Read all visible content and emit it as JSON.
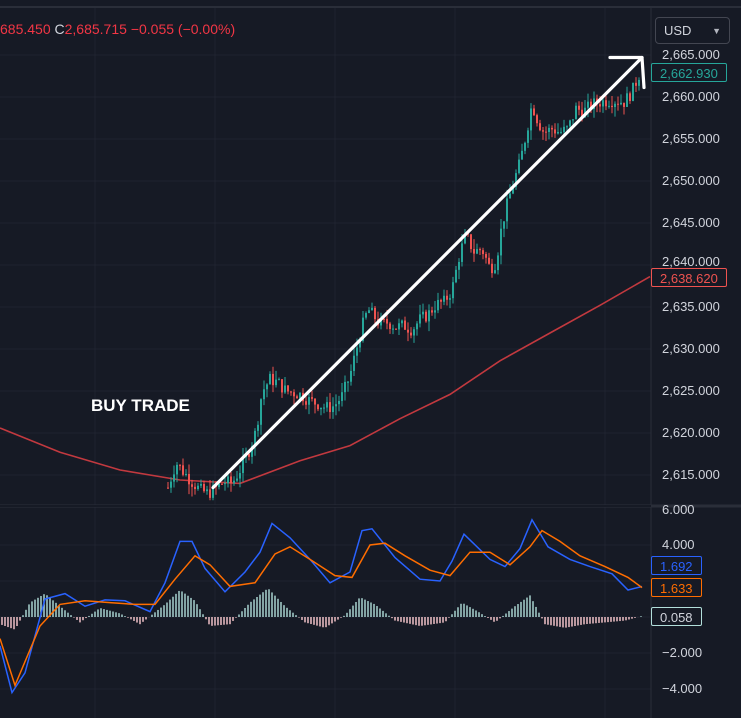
{
  "header": {
    "ohlc_open_fragment": "685.450",
    "close_label": "C",
    "close_value": "2,685.715",
    "change": "−0.055 (−0.00%)"
  },
  "currency_selector": {
    "label": "USD",
    "icon": "chevron-down-icon"
  },
  "colors": {
    "background": "#161a25",
    "up": "#26a69a",
    "down": "#ef5350",
    "moving_average": "#c2393f",
    "arrow": "#ffffff",
    "macd": "#2962ff",
    "signal": "#ff6d00",
    "hist_up": "#b2dfdb",
    "hist_down": "#ffcdd2"
  },
  "annotation": {
    "text": "BUY TRADE",
    "arrow": "trend-up-arrow"
  },
  "chart_data": [
    {
      "type": "candlestick",
      "title": "",
      "ylim": [
        2609,
        2666
      ],
      "y_ticks": [
        "2,615.000",
        "2,620.000",
        "2,625.000",
        "2,630.000",
        "2,635.000",
        "2,640.000",
        "2,645.000",
        "2,650.000",
        "2,655.000",
        "2,660.000",
        "2,665.000"
      ],
      "y_tick_values": [
        2615,
        2620,
        2625,
        2630,
        2635,
        2640,
        2645,
        2650,
        2655,
        2660,
        2665
      ],
      "price_badges": [
        {
          "label": "2,662.930",
          "value": 2662.93,
          "color": "#26a69a"
        },
        {
          "label": "2,638.620",
          "value": 2638.62,
          "color": "#ef5350"
        }
      ],
      "moving_average": {
        "points": [
          [
            0,
            2620.6
          ],
          [
            60,
            2617.7
          ],
          [
            120,
            2615.6
          ],
          [
            180,
            2614.4
          ],
          [
            240,
            2614
          ],
          [
            300,
            2616.7
          ],
          [
            350,
            2618.5
          ],
          [
            400,
            2621.7
          ],
          [
            450,
            2624.6
          ],
          [
            500,
            2628.6
          ],
          [
            550,
            2631.9
          ],
          [
            600,
            2635.2
          ],
          [
            650,
            2638.62
          ]
        ]
      },
      "trend_arrow": {
        "from": [
          213,
          2613.5
        ],
        "to": [
          642,
          2664.7
        ]
      },
      "price_path": [
        [
          168,
          2613.5
        ],
        [
          176,
          2616.5
        ],
        [
          184,
          2615.3
        ],
        [
          192,
          2614.2
        ],
        [
          200,
          2613.2
        ],
        [
          208,
          2612.8
        ],
        [
          216,
          2613.4
        ],
        [
          224,
          2614.2
        ],
        [
          232,
          2614
        ],
        [
          240,
          2615.6
        ],
        [
          248,
          2617.6
        ],
        [
          256,
          2620.2
        ],
        [
          262,
          2624.9
        ],
        [
          270,
          2626.4
        ],
        [
          278,
          2626
        ],
        [
          286,
          2625
        ],
        [
          294,
          2624.8
        ],
        [
          302,
          2624.5
        ],
        [
          310,
          2623.8
        ],
        [
          318,
          2623.5
        ],
        [
          326,
          2623
        ],
        [
          334,
          2623.2
        ],
        [
          342,
          2624.4
        ],
        [
          350,
          2626.8
        ],
        [
          356,
          2629.8
        ],
        [
          362,
          2632.6
        ],
        [
          368,
          2634.7
        ],
        [
          374,
          2633.9
        ],
        [
          380,
          2632.9
        ],
        [
          388,
          2633.2
        ],
        [
          396,
          2632.6
        ],
        [
          404,
          2632.8
        ],
        [
          412,
          2632.3
        ],
        [
          420,
          2633.5
        ],
        [
          428,
          2634.1
        ],
        [
          436,
          2635.3
        ],
        [
          444,
          2635.6
        ],
        [
          452,
          2637
        ],
        [
          460,
          2641.5
        ],
        [
          466,
          2643.5
        ],
        [
          474,
          2641.6
        ],
        [
          482,
          2641.9
        ],
        [
          490,
          2639.6
        ],
        [
          496,
          2640.3
        ],
        [
          502,
          2644.8
        ],
        [
          508,
          2647.6
        ],
        [
          514,
          2650
        ],
        [
          520,
          2652.2
        ],
        [
          526,
          2655.5
        ],
        [
          532,
          2659.2
        ],
        [
          538,
          2657.1
        ],
        [
          544,
          2655.8
        ],
        [
          552,
          2656.2
        ],
        [
          560,
          2655.8
        ],
        [
          568,
          2656.2
        ],
        [
          576,
          2658.6
        ],
        [
          584,
          2658.3
        ],
        [
          592,
          2659.1
        ],
        [
          600,
          2659.4
        ],
        [
          608,
          2659.6
        ],
        [
          616,
          2659.6
        ],
        [
          624,
          2659.4
        ],
        [
          632,
          2660.6
        ],
        [
          640,
          2662.93
        ]
      ]
    },
    {
      "type": "line",
      "title": "",
      "ylim": [
        -5,
        6
      ],
      "y_ticks": [
        "−4.000",
        "−2.000",
        "4.000",
        "6.000"
      ],
      "y_tick_values": [
        -4,
        -2,
        4,
        6
      ],
      "value_badges": [
        {
          "label": "1.692",
          "value": 1.692,
          "color": "#2962ff"
        },
        {
          "label": "1.633",
          "value": 1.633,
          "color": "#ff6d00"
        },
        {
          "label": "0.058",
          "value": 0.058,
          "color": "#26a69a"
        }
      ],
      "series": [
        {
          "role": "macd",
          "points": [
            [
              0,
              -1.6
            ],
            [
              12,
              -4.2
            ],
            [
              25,
              -3.1
            ],
            [
              45,
              1
            ],
            [
              65,
              1.3
            ],
            [
              85,
              0.6
            ],
            [
              105,
              0.95
            ],
            [
              125,
              0.9
            ],
            [
              150,
              0.3
            ],
            [
              165,
              1.9
            ],
            [
              180,
              4.2
            ],
            [
              192,
              4.2
            ],
            [
              205,
              2.7
            ],
            [
              225,
              1.4
            ],
            [
              245,
              2.5
            ],
            [
              260,
              3.6
            ],
            [
              272,
              5.2
            ],
            [
              290,
              4.4
            ],
            [
              310,
              3.2
            ],
            [
              330,
              1.9
            ],
            [
              350,
              2.5
            ],
            [
              362,
              4.8
            ],
            [
              372,
              4.9
            ],
            [
              395,
              3.3
            ],
            [
              420,
              2.1
            ],
            [
              440,
              2
            ],
            [
              452,
              3.1
            ],
            [
              464,
              4.6
            ],
            [
              490,
              3.2
            ],
            [
              505,
              2.8
            ],
            [
              520,
              3.8
            ],
            [
              532,
              5.4
            ],
            [
              548,
              3.9
            ],
            [
              570,
              3.2
            ],
            [
              590,
              2.8
            ],
            [
              612,
              2.4
            ],
            [
              628,
              1.5
            ],
            [
              642,
              1.692
            ]
          ]
        },
        {
          "role": "signal",
          "points": [
            [
              0,
              -1.2
            ],
            [
              15,
              -3.8
            ],
            [
              40,
              -0.5
            ],
            [
              60,
              0.7
            ],
            [
              85,
              0.9
            ],
            [
              110,
              0.8
            ],
            [
              135,
              0.7
            ],
            [
              155,
              0.7
            ],
            [
              175,
              2.1
            ],
            [
              195,
              3.4
            ],
            [
              210,
              2.9
            ],
            [
              230,
              1.7
            ],
            [
              255,
              1.9
            ],
            [
              275,
              3.5
            ],
            [
              290,
              3.9
            ],
            [
              310,
              3.2
            ],
            [
              335,
              2.3
            ],
            [
              352,
              2.2
            ],
            [
              370,
              4
            ],
            [
              385,
              4.1
            ],
            [
              405,
              3.4
            ],
            [
              430,
              2.6
            ],
            [
              450,
              2.3
            ],
            [
              470,
              3.6
            ],
            [
              490,
              3.6
            ],
            [
              510,
              2.9
            ],
            [
              530,
              3.9
            ],
            [
              542,
              4.8
            ],
            [
              560,
              4.2
            ],
            [
              580,
              3.4
            ],
            [
              605,
              2.8
            ],
            [
              628,
              2.2
            ],
            [
              642,
              1.633
            ]
          ]
        },
        {
          "role": "histogram",
          "points": [
            [
              0,
              -0.4
            ],
            [
              15,
              -0.7
            ],
            [
              30,
              0.8
            ],
            [
              45,
              1.3
            ],
            [
              60,
              0.6
            ],
            [
              80,
              -0.3
            ],
            [
              100,
              0.5
            ],
            [
              120,
              0.2
            ],
            [
              140,
              -0.4
            ],
            [
              165,
              0.7
            ],
            [
              180,
              1.5
            ],
            [
              195,
              0.9
            ],
            [
              210,
              -0.5
            ],
            [
              230,
              -0.4
            ],
            [
              250,
              0.8
            ],
            [
              268,
              1.6
            ],
            [
              285,
              0.6
            ],
            [
              305,
              -0.3
            ],
            [
              325,
              -0.6
            ],
            [
              345,
              0.1
            ],
            [
              360,
              1.1
            ],
            [
              375,
              0.7
            ],
            [
              395,
              -0.2
            ],
            [
              420,
              -0.5
            ],
            [
              445,
              -0.3
            ],
            [
              462,
              0.8
            ],
            [
              478,
              0.3
            ],
            [
              495,
              -0.3
            ],
            [
              515,
              0.6
            ],
            [
              530,
              1.2
            ],
            [
              545,
              -0.4
            ],
            [
              565,
              -0.6
            ],
            [
              585,
              -0.4
            ],
            [
              605,
              -0.3
            ],
            [
              625,
              -0.2
            ],
            [
              642,
              0.058
            ]
          ]
        }
      ]
    }
  ]
}
